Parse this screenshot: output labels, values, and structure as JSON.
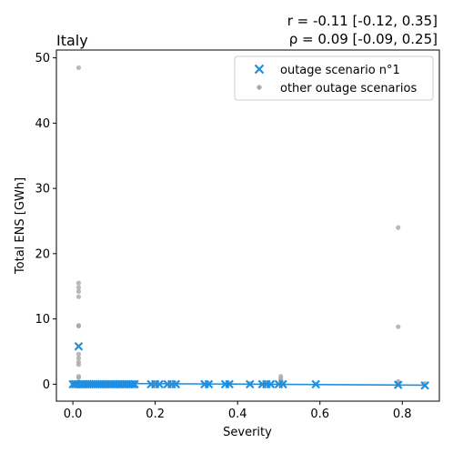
{
  "chart_data": {
    "type": "scatter",
    "title": "Italy",
    "annotation": {
      "line1": "r = -0.11 [-0.12, 0.35]",
      "line2": "ρ = 0.09 [-0.09, 0.25]"
    },
    "xlabel": "Severity",
    "ylabel": "Total ENS [GWh]",
    "xlim": [
      -0.04,
      0.89
    ],
    "ylim": [
      -2.6,
      51.2
    ],
    "xticks": [
      0.0,
      0.2,
      0.4,
      0.6,
      0.8
    ],
    "xtick_labels": [
      "0.0",
      "0.2",
      "0.4",
      "0.6",
      "0.8"
    ],
    "yticks": [
      0,
      10,
      20,
      30,
      40,
      50
    ],
    "ytick_labels": [
      "0",
      "10",
      "20",
      "30",
      "40",
      "50"
    ],
    "grid": false,
    "legend_position": "top-right",
    "series": [
      {
        "name": "outage scenario n°1",
        "marker": "x",
        "color": "#1f8fe0",
        "points": [
          [
            0.0,
            0
          ],
          [
            0.005,
            0
          ],
          [
            0.01,
            0
          ],
          [
            0.014,
            5.8
          ],
          [
            0.018,
            0
          ],
          [
            0.022,
            0
          ],
          [
            0.027,
            0
          ],
          [
            0.031,
            0
          ],
          [
            0.036,
            0
          ],
          [
            0.04,
            0
          ],
          [
            0.045,
            0
          ],
          [
            0.05,
            0
          ],
          [
            0.055,
            0
          ],
          [
            0.06,
            0
          ],
          [
            0.065,
            0
          ],
          [
            0.07,
            0
          ],
          [
            0.075,
            0
          ],
          [
            0.08,
            0
          ],
          [
            0.085,
            0
          ],
          [
            0.09,
            0
          ],
          [
            0.095,
            0
          ],
          [
            0.1,
            0
          ],
          [
            0.105,
            0
          ],
          [
            0.11,
            0
          ],
          [
            0.115,
            0
          ],
          [
            0.12,
            0
          ],
          [
            0.125,
            0
          ],
          [
            0.13,
            0
          ],
          [
            0.135,
            0
          ],
          [
            0.14,
            0
          ],
          [
            0.145,
            0
          ],
          [
            0.15,
            0
          ],
          [
            0.19,
            0
          ],
          [
            0.2,
            0
          ],
          [
            0.21,
            0
          ],
          [
            0.23,
            0
          ],
          [
            0.24,
            0
          ],
          [
            0.25,
            0
          ],
          [
            0.32,
            0
          ],
          [
            0.33,
            0
          ],
          [
            0.37,
            0
          ],
          [
            0.38,
            0
          ],
          [
            0.43,
            0
          ],
          [
            0.46,
            0
          ],
          [
            0.47,
            0
          ],
          [
            0.48,
            0
          ],
          [
            0.5,
            0
          ],
          [
            0.51,
            0
          ],
          [
            0.59,
            0
          ],
          [
            0.79,
            -0.1
          ],
          [
            0.855,
            -0.2
          ]
        ],
        "trend_line": [
          [
            0.0,
            0.15
          ],
          [
            0.855,
            -0.15
          ]
        ]
      },
      {
        "name": "other outage scenarios",
        "marker": "circle",
        "color": "#a8a8a8",
        "points": [
          [
            0.014,
            48.5
          ],
          [
            0.014,
            15.5
          ],
          [
            0.014,
            14.8
          ],
          [
            0.014,
            14.2
          ],
          [
            0.014,
            13.4
          ],
          [
            0.014,
            9.0
          ],
          [
            0.014,
            8.9
          ],
          [
            0.014,
            4.6
          ],
          [
            0.014,
            4.0
          ],
          [
            0.014,
            3.4
          ],
          [
            0.014,
            3.0
          ],
          [
            0.014,
            1.2
          ],
          [
            0.014,
            1.0
          ],
          [
            0.014,
            0.3
          ],
          [
            0.014,
            0.1
          ],
          [
            0.0,
            0.1
          ],
          [
            0.05,
            0.1
          ],
          [
            0.1,
            0.1
          ],
          [
            0.15,
            0.1
          ],
          [
            0.2,
            0.1
          ],
          [
            0.25,
            0.1
          ],
          [
            0.33,
            0.1
          ],
          [
            0.38,
            0.1
          ],
          [
            0.43,
            0.1
          ],
          [
            0.47,
            0.1
          ],
          [
            0.505,
            1.2
          ],
          [
            0.505,
            0.8
          ],
          [
            0.505,
            0.5
          ],
          [
            0.51,
            0.2
          ],
          [
            0.79,
            24.0
          ],
          [
            0.79,
            8.8
          ],
          [
            0.79,
            0.4
          ],
          [
            0.79,
            0.2
          ],
          [
            0.855,
            0.1
          ]
        ]
      }
    ]
  }
}
